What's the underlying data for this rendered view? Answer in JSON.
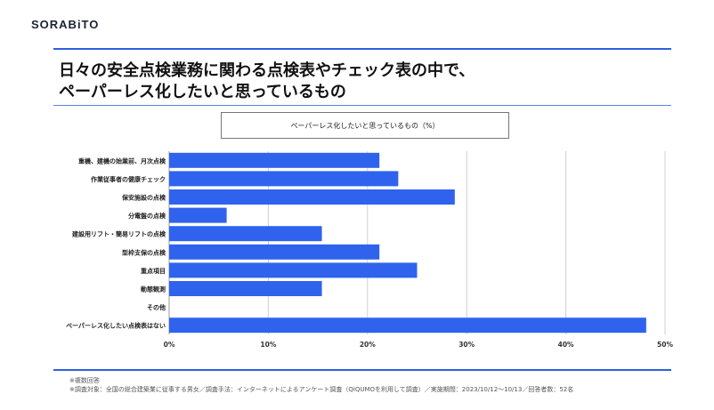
{
  "brand": {
    "logo_text": "SORABiTO"
  },
  "header": {
    "title_line1": "日々の安全点検業務に関わる点検表やチェック表の中で、",
    "title_line2": "ペーパーレス化したいと思っているもの"
  },
  "chart_data": {
    "type": "bar",
    "orientation": "horizontal",
    "title": "ペーパーレス化したいと思っているもの（%）",
    "categories": [
      "重機、建機の始業前、月次点検",
      "作業従事者の健康チェック",
      "保安施設の点検",
      "分電盤の点検",
      "建設用リフト・簡易リフトの点検",
      "型枠支保の点検",
      "重点項目",
      "動態観測",
      "その他",
      "ペーパーレス化したい点検表はない"
    ],
    "values": [
      21.2,
      23.1,
      28.8,
      5.8,
      15.4,
      21.2,
      25.0,
      15.4,
      0,
      48.1
    ],
    "xlim": [
      0,
      50
    ],
    "xticks": [
      "0%",
      "10%",
      "20%",
      "30%",
      "40%",
      "50%"
    ],
    "grid": true,
    "bar_color": "#2f63ee"
  },
  "notes": {
    "multiple_answers": "※複数回答",
    "survey": "※調査対象：全国の総合建築業に従事する男女／調査手法：インターネットによるアンケート調査（QiQUMOを利用して調査）／実施期間：2023/10/12〜10/13／回答者数：52名"
  }
}
